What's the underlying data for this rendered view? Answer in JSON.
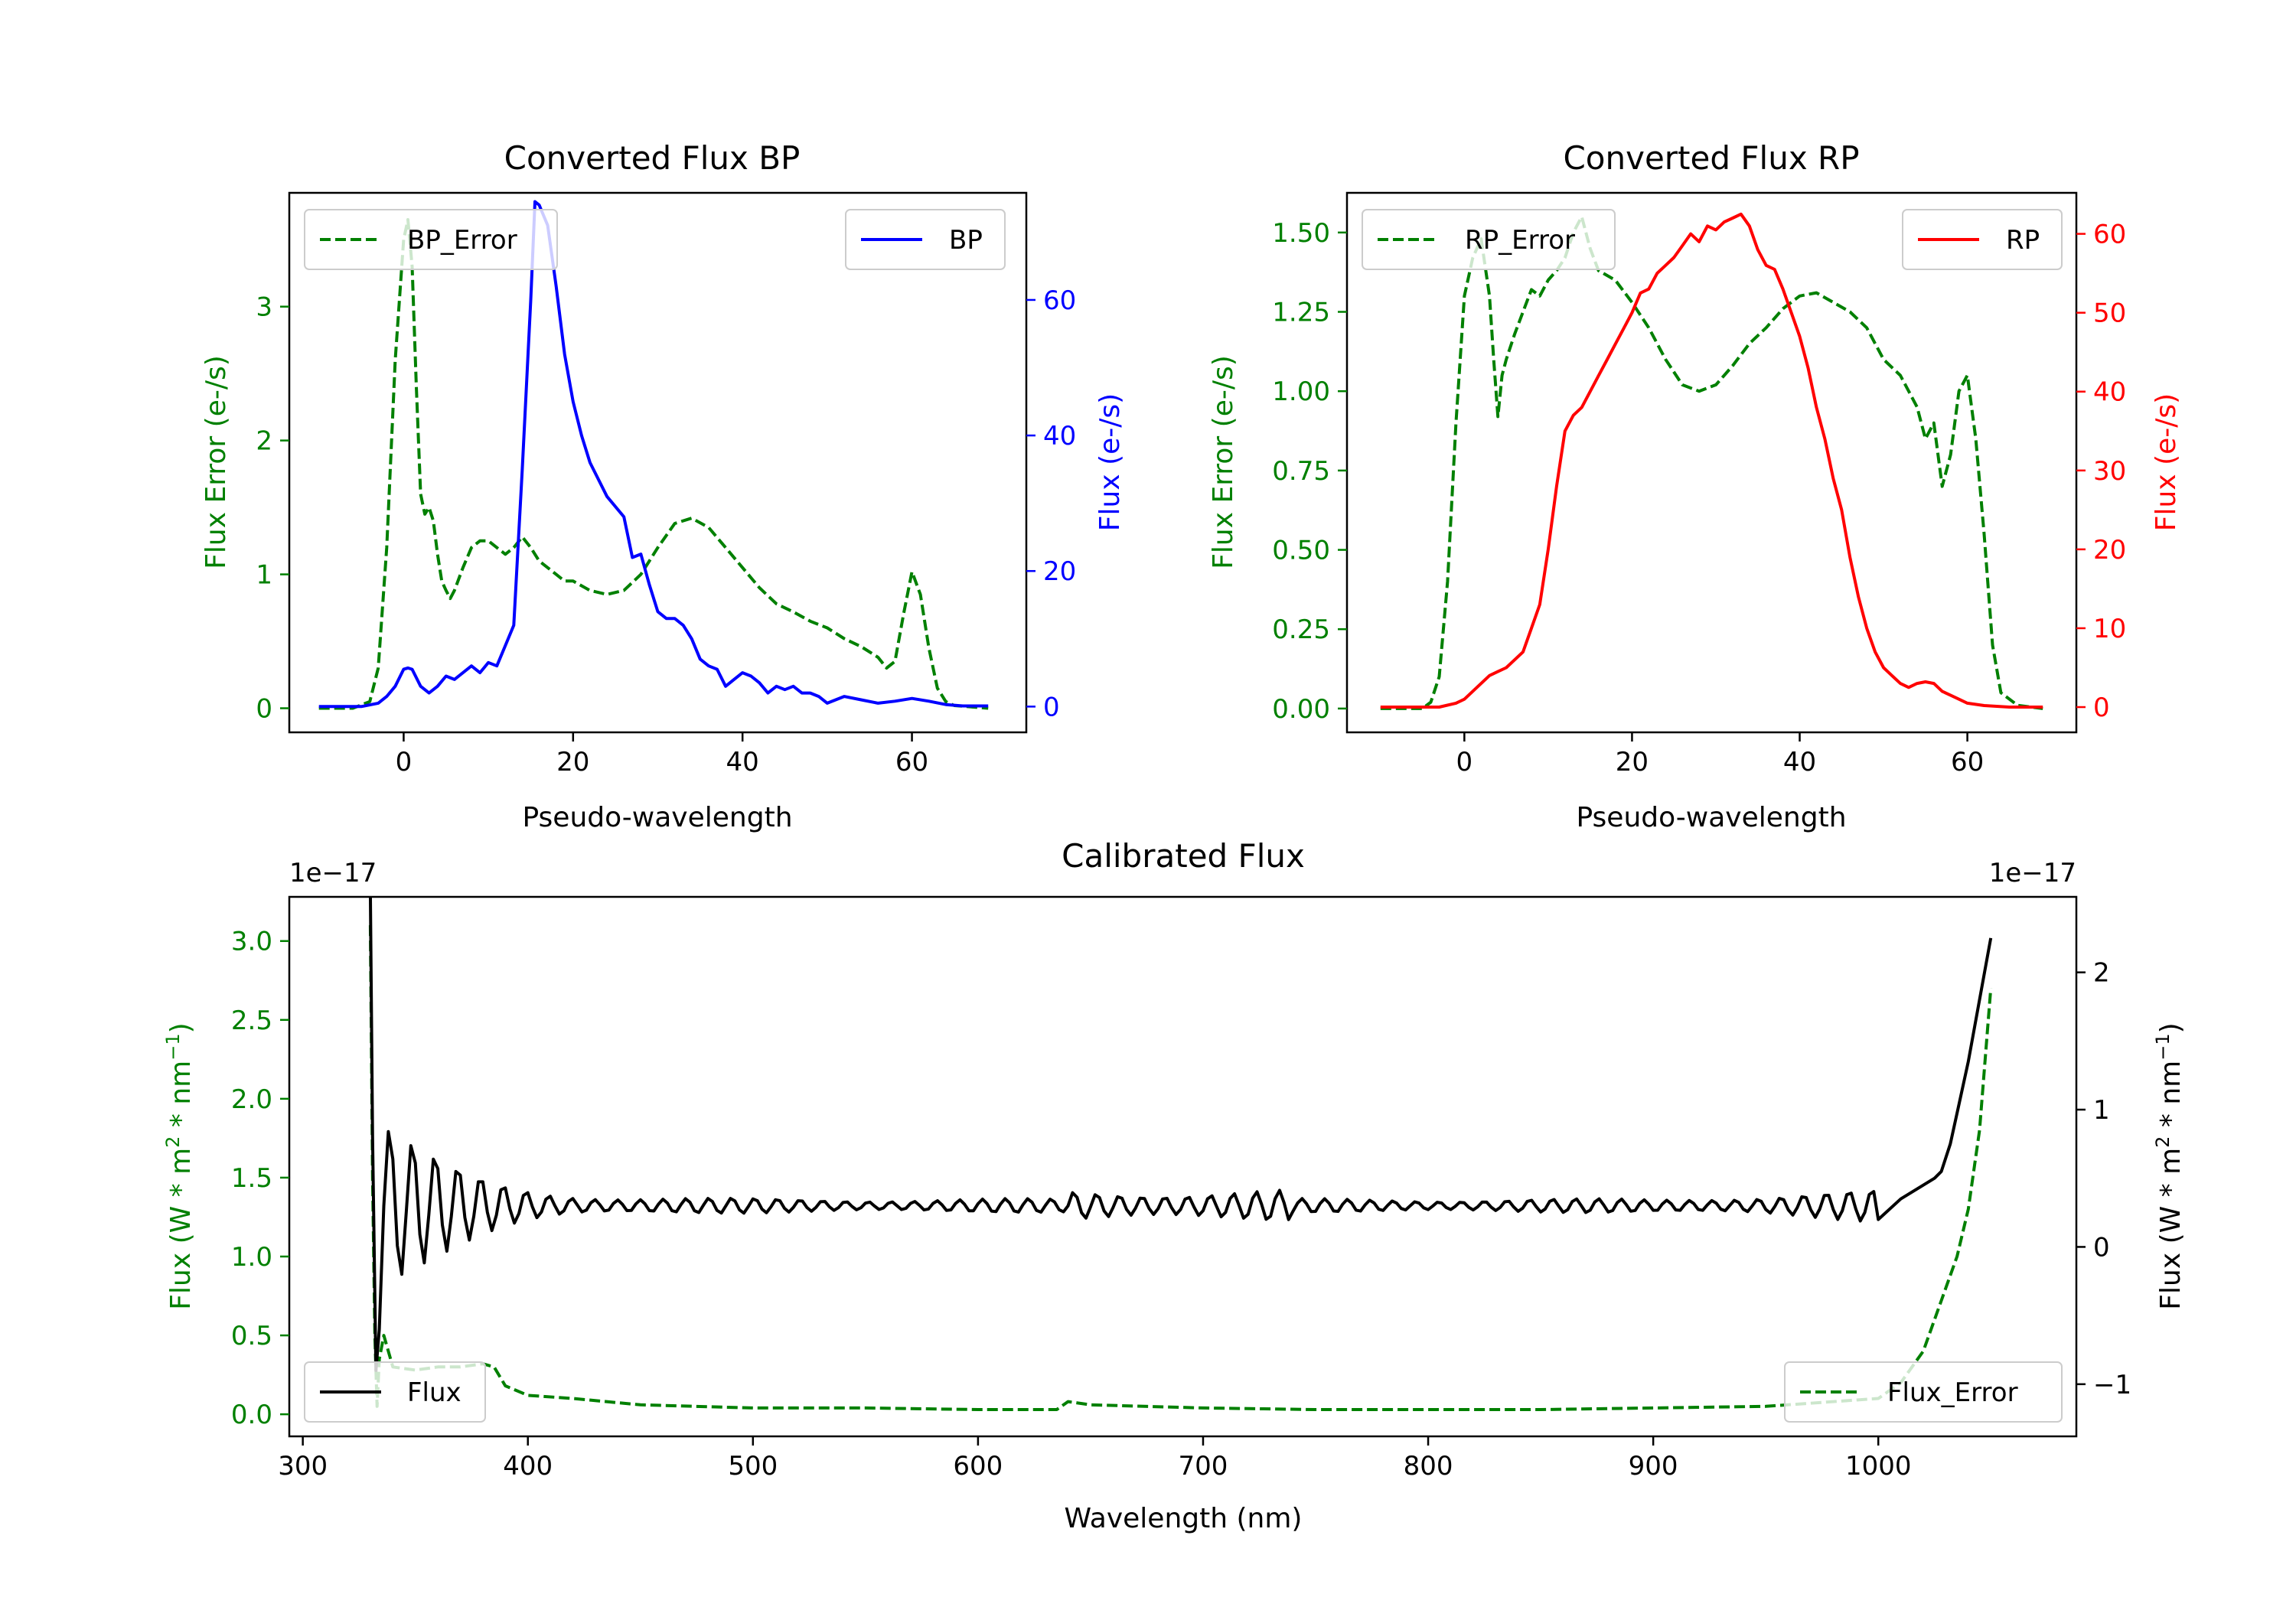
{
  "chart_data": [
    {
      "id": "bp",
      "type": "line",
      "title": "Converted Flux BP",
      "xlabel": "Pseudo-wavelength",
      "ylabel_left": "Flux Error (e-/s)",
      "ylabel_right": "Flux (e-/s)",
      "xlim": [
        -13.5,
        73.5
      ],
      "ylim_left": [
        -0.18,
        3.85
      ],
      "ylim_right": [
        -3.8,
        75.8
      ],
      "xticks": [
        0,
        20,
        40,
        60
      ],
      "yticks_left": [
        0,
        1,
        2,
        3
      ],
      "yticks_right": [
        0,
        20,
        40,
        60
      ],
      "left_color": "#008000",
      "right_color": "#0000ff",
      "series": [
        {
          "name": "BP_Error",
          "axis": "left",
          "style": "dashed",
          "color": "#008000",
          "x": [
            -10,
            -6,
            -4,
            -3,
            -2,
            -1,
            0,
            0.5,
            1,
            1.5,
            2,
            2.5,
            3,
            3.5,
            4,
            4.5,
            5,
            5.5,
            6,
            7,
            8,
            9,
            10,
            11,
            12,
            13,
            14,
            15,
            16,
            17,
            18,
            19,
            20,
            22,
            24,
            26,
            28,
            30,
            32,
            34,
            36,
            38,
            40,
            42,
            44,
            46,
            48,
            50,
            52,
            54,
            56,
            57,
            58,
            59,
            60,
            61,
            62,
            63,
            64,
            65,
            67,
            69
          ],
          "values": [
            0,
            0,
            0.05,
            0.3,
            1.2,
            2.6,
            3.5,
            3.65,
            3.3,
            2.4,
            1.6,
            1.45,
            1.5,
            1.4,
            1.15,
            0.95,
            0.88,
            0.82,
            0.88,
            1.05,
            1.2,
            1.25,
            1.25,
            1.2,
            1.15,
            1.2,
            1.28,
            1.2,
            1.1,
            1.05,
            1.0,
            0.95,
            0.95,
            0.88,
            0.85,
            0.88,
            1.0,
            1.2,
            1.38,
            1.42,
            1.35,
            1.2,
            1.05,
            0.9,
            0.78,
            0.72,
            0.65,
            0.6,
            0.52,
            0.46,
            0.38,
            0.3,
            0.35,
            0.7,
            1.02,
            0.85,
            0.45,
            0.15,
            0.05,
            0.02,
            0.01,
            0.0
          ]
        },
        {
          "name": "BP",
          "axis": "right",
          "style": "solid",
          "color": "#0000ff",
          "x": [
            -10,
            -5,
            -3,
            -2,
            -1,
            0,
            0.5,
            1,
            2,
            3,
            4,
            5,
            6,
            7,
            8,
            9,
            10,
            11,
            12,
            13,
            14,
            15,
            15.5,
            16,
            17,
            18,
            19,
            20,
            21,
            22,
            24,
            26,
            27,
            28,
            29,
            30,
            31,
            32,
            33,
            34,
            35,
            36,
            37,
            38,
            39,
            40,
            41,
            42,
            43,
            44,
            45,
            46,
            47,
            48,
            49,
            50,
            52,
            54,
            56,
            58,
            60,
            62,
            64,
            66,
            69
          ],
          "values": [
            0,
            0,
            0.5,
            1.5,
            3.0,
            5.5,
            5.7,
            5.5,
            3.0,
            2.0,
            3.0,
            4.5,
            4.0,
            5.0,
            6.0,
            5.0,
            6.5,
            6.0,
            9.0,
            12.0,
            35.0,
            60.0,
            74.5,
            74.0,
            71.0,
            62.0,
            52.0,
            45.0,
            40.0,
            36.0,
            31.0,
            28.0,
            22.0,
            22.5,
            18.0,
            14.0,
            13.0,
            13.0,
            12.0,
            10.0,
            7.0,
            6.0,
            5.5,
            3.0,
            4.0,
            5.0,
            4.5,
            3.5,
            2.0,
            3.0,
            2.5,
            3.0,
            2.0,
            2.0,
            1.5,
            0.5,
            1.5,
            1.0,
            0.5,
            0.8,
            1.2,
            0.8,
            0.3,
            0.1,
            0.1
          ]
        }
      ],
      "legend": [
        {
          "label": "BP_Error",
          "position": "upper-left"
        },
        {
          "label": "BP",
          "position": "upper-right"
        }
      ]
    },
    {
      "id": "rp",
      "type": "line",
      "title": "Converted Flux RP",
      "xlabel": "Pseudo-wavelength",
      "ylabel_left": "Flux Error (e-/s)",
      "ylabel_right": "Flux (e-/s)",
      "xlim": [
        -14,
        73
      ],
      "ylim_left": [
        -0.075,
        1.625
      ],
      "ylim_right": [
        -3.2,
        65.2
      ],
      "xticks": [
        0,
        20,
        40,
        60
      ],
      "yticks_left": [
        0.0,
        0.25,
        0.5,
        0.75,
        1.0,
        1.25,
        1.5
      ],
      "yticks_left_labels": [
        "0.00",
        "0.25",
        "0.50",
        "0.75",
        "1.00",
        "1.25",
        "1.50"
      ],
      "yticks_right": [
        0,
        10,
        20,
        30,
        40,
        50,
        60
      ],
      "left_color": "#008000",
      "right_color": "#ff0000",
      "series": [
        {
          "name": "RP_Error",
          "axis": "left",
          "style": "dashed",
          "color": "#008000",
          "x": [
            -10,
            -5,
            -4,
            -3,
            -2,
            -1,
            0,
            1,
            2,
            3,
            3.5,
            4,
            4.5,
            5,
            6,
            7,
            8,
            9,
            10,
            11,
            12,
            13,
            14,
            15,
            16,
            18,
            20,
            22,
            24,
            26,
            28,
            30,
            32,
            34,
            36,
            38,
            40,
            42,
            44,
            46,
            48,
            50,
            52,
            54,
            55,
            56,
            57,
            58,
            59,
            60,
            61,
            62,
            63,
            64,
            66,
            69
          ],
          "values": [
            0,
            0,
            0.02,
            0.1,
            0.4,
            0.9,
            1.3,
            1.42,
            1.48,
            1.3,
            1.1,
            0.92,
            1.05,
            1.1,
            1.18,
            1.25,
            1.32,
            1.3,
            1.35,
            1.38,
            1.42,
            1.5,
            1.55,
            1.45,
            1.38,
            1.35,
            1.28,
            1.2,
            1.1,
            1.02,
            1.0,
            1.02,
            1.08,
            1.15,
            1.2,
            1.26,
            1.3,
            1.31,
            1.28,
            1.25,
            1.2,
            1.1,
            1.05,
            0.95,
            0.85,
            0.9,
            0.7,
            0.8,
            1.0,
            1.05,
            0.85,
            0.55,
            0.2,
            0.05,
            0.01,
            0.0
          ]
        },
        {
          "name": "RP",
          "axis": "right",
          "style": "solid",
          "color": "#ff0000",
          "x": [
            -10,
            -3,
            -1,
            0,
            1,
            2,
            3,
            4,
            5,
            6,
            7,
            8,
            9,
            10,
            11,
            12,
            13,
            14,
            15,
            16,
            17,
            18,
            19,
            20,
            21,
            22,
            23,
            24,
            25,
            26,
            27,
            28,
            29,
            30,
            31,
            32,
            33,
            34,
            35,
            36,
            37,
            38,
            39,
            40,
            41,
            42,
            43,
            44,
            45,
            46,
            47,
            48,
            49,
            50,
            51,
            52,
            53,
            54,
            55,
            56,
            57,
            58,
            59,
            60,
            62,
            65,
            69
          ],
          "values": [
            0,
            0,
            0.5,
            1.0,
            2.0,
            3.0,
            4.0,
            4.5,
            5.0,
            6.0,
            7.0,
            10.0,
            13.0,
            20.0,
            28.0,
            35.0,
            37.0,
            38.0,
            40.0,
            42.0,
            44.0,
            46.0,
            48.0,
            50.0,
            52.5,
            53.0,
            55.0,
            56.0,
            57.0,
            58.5,
            60.0,
            59.0,
            61.0,
            60.5,
            61.5,
            62.0,
            62.5,
            61.0,
            58.0,
            56.0,
            55.5,
            53.0,
            50.0,
            47.0,
            43.0,
            38.0,
            34.0,
            29.0,
            25.0,
            19.0,
            14.0,
            10.0,
            7.0,
            5.0,
            4.0,
            3.0,
            2.5,
            3.0,
            3.2,
            3.0,
            2.0,
            1.5,
            1.0,
            0.5,
            0.2,
            0.0,
            0.0
          ]
        }
      ],
      "legend": [
        {
          "label": "RP_Error",
          "position": "upper-left"
        },
        {
          "label": "RP",
          "position": "upper-right"
        }
      ]
    },
    {
      "id": "cal",
      "type": "line",
      "title": "Calibrated Flux",
      "xlabel": "Wavelength (nm)",
      "ylabel_left": "Flux (W * m² * nm⁻¹)",
      "ylabel_right": "Flux (W * m² * nm⁻¹)",
      "ylabel_left_parts": [
        "Flux (W * m",
        "2",
        " * nm",
        "−1",
        ")"
      ],
      "ylabel_right_parts": [
        "Flux (W * m",
        "2",
        " * nm",
        "−1",
        ")"
      ],
      "offset_left": "1e−17",
      "offset_right": "1e−17",
      "xlim": [
        294,
        1088
      ],
      "ylim_left": [
        -0.14,
        3.28
      ],
      "ylim_right": [
        -1.38,
        2.55
      ],
      "xticks": [
        300,
        400,
        500,
        600,
        700,
        800,
        900,
        1000
      ],
      "yticks_left": [
        0.0,
        0.5,
        1.0,
        1.5,
        2.0,
        2.5,
        3.0
      ],
      "yticks_left_labels": [
        "0.0",
        "0.5",
        "1.0",
        "1.5",
        "2.0",
        "2.5",
        "3.0"
      ],
      "yticks_right": [
        -1,
        0,
        1,
        2
      ],
      "yticks_right_labels": [
        "−1",
        "0",
        "1",
        "2"
      ],
      "left_color": "#008000",
      "right_color": "#000000",
      "series": [
        {
          "name": "Flux_Error",
          "axis": "left",
          "style": "dashed",
          "color": "#008000",
          "x": [
            330,
            331,
            332,
            333,
            334,
            336,
            340,
            350,
            360,
            370,
            380,
            385,
            390,
            400,
            420,
            450,
            500,
            550,
            600,
            635,
            640,
            650,
            700,
            750,
            800,
            850,
            900,
            950,
            1000,
            1010,
            1020,
            1025,
            1030,
            1035,
            1040,
            1045,
            1050
          ],
          "values": [
            3.1,
            1.5,
            0.5,
            0.05,
            0.35,
            0.5,
            0.3,
            0.28,
            0.3,
            0.3,
            0.32,
            0.3,
            0.18,
            0.12,
            0.1,
            0.06,
            0.04,
            0.04,
            0.03,
            0.03,
            0.08,
            0.06,
            0.04,
            0.03,
            0.03,
            0.03,
            0.04,
            0.05,
            0.1,
            0.2,
            0.4,
            0.6,
            0.8,
            1.0,
            1.3,
            1.8,
            2.7
          ]
        },
        {
          "name": "Flux",
          "axis": "right",
          "style": "solid",
          "color": "#000000",
          "x_start": 336,
          "x_step": 2,
          "head_x": [
            330,
            331,
            332.5,
            334
          ],
          "head_values": [
            2.6,
            0.8,
            -0.9,
            -0.6
          ],
          "tail_x": [
            1000,
            1010,
            1020,
            1025,
            1028,
            1032,
            1036,
            1040,
            1045,
            1050
          ],
          "tail_values": [
            0.2,
            0.35,
            0.45,
            0.5,
            0.55,
            0.75,
            1.05,
            1.35,
            1.8,
            2.25
          ],
          "mean": 0.3
        }
      ],
      "legend": [
        {
          "label": "Flux",
          "position": "lower-left"
        },
        {
          "label": "Flux_Error",
          "position": "lower-right"
        }
      ]
    }
  ]
}
